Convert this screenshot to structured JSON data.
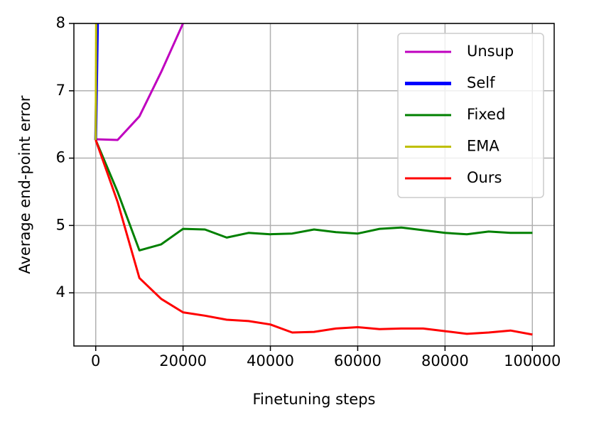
{
  "chart_data": {
    "type": "line",
    "xlabel": "Finetuning steps",
    "ylabel": "Average end-point error",
    "xlim": [
      -5000,
      105000
    ],
    "ylim": [
      3.21,
      8
    ],
    "xticks": [
      0,
      20000,
      40000,
      60000,
      80000,
      100000
    ],
    "yticks": [
      4,
      5,
      6,
      7,
      8
    ],
    "grid": true,
    "legend": "upper right",
    "series": [
      {
        "name": "Unsup",
        "color": "#bf00bf",
        "x": [
          0,
          5000,
          10000,
          15000,
          20000
        ],
        "values": [
          6.28,
          6.27,
          6.62,
          7.28,
          8.0
        ]
      },
      {
        "name": "Self",
        "color": "#0000ff",
        "x": [
          0,
          400
        ],
        "values": [
          6.27,
          8.0
        ]
      },
      {
        "name": "Fixed",
        "color": "#008000",
        "x": [
          0,
          5000,
          10000,
          15000,
          20000,
          25000,
          30000,
          35000,
          40000,
          45000,
          50000,
          55000,
          60000,
          65000,
          70000,
          75000,
          80000,
          85000,
          90000,
          95000,
          100000
        ],
        "values": [
          6.27,
          5.5,
          4.63,
          4.72,
          4.95,
          4.94,
          4.82,
          4.89,
          4.87,
          4.88,
          4.94,
          4.9,
          4.88,
          4.95,
          4.97,
          4.93,
          4.89,
          4.87,
          4.91,
          4.89,
          4.89
        ]
      },
      {
        "name": "EMA",
        "color": "#bfbf00",
        "x": [
          0,
          100
        ],
        "values": [
          6.27,
          8.0
        ]
      },
      {
        "name": "Ours",
        "color": "#ff0000",
        "x": [
          0,
          5000,
          10000,
          15000,
          20000,
          25000,
          30000,
          35000,
          40000,
          45000,
          50000,
          55000,
          60000,
          65000,
          70000,
          75000,
          80000,
          85000,
          90000,
          95000,
          100000
        ],
        "values": [
          6.27,
          5.35,
          4.22,
          3.91,
          3.71,
          3.66,
          3.6,
          3.58,
          3.53,
          3.41,
          3.42,
          3.47,
          3.49,
          3.46,
          3.47,
          3.47,
          3.43,
          3.39,
          3.41,
          3.44,
          3.38
        ]
      }
    ]
  }
}
